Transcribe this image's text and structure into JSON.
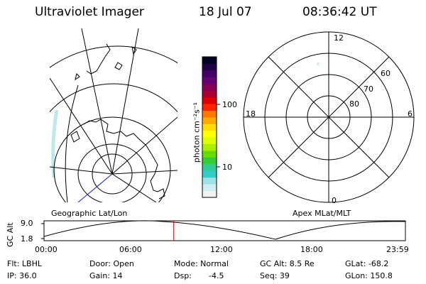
{
  "header": {
    "title": "Ultraviolet Imager",
    "date": "18 Jul 07",
    "time": "08:36:42 UT"
  },
  "colorbar": {
    "unit_label": "photon cm⁻²s⁻¹",
    "ticks": [
      "100",
      "10"
    ],
    "colors": [
      "#f2f2f2",
      "#cfeef2",
      "#9ee3ea",
      "#33cccc",
      "#33cc99",
      "#33cc33",
      "#66dd00",
      "#aaee00",
      "#ddff00",
      "#ffff00",
      "#ffdd00",
      "#ffaa00",
      "#ff7700",
      "#ff2200",
      "#dd0000",
      "#aa0033",
      "#880055",
      "#660077",
      "#440066",
      "#220044",
      "#000022"
    ]
  },
  "left_panel": {
    "label": "Geographic Lat/Lon"
  },
  "right_panel": {
    "label": "Apex MLat/MLT",
    "mlt_labels": {
      "top": "12",
      "left": "18",
      "right": "6",
      "bottom": "0"
    },
    "lat_labels": [
      "60",
      "70",
      "80"
    ]
  },
  "timeline": {
    "y_axis_label": "GC Alt",
    "y_ticks": [
      "9.0",
      "1.8"
    ],
    "x_ticks": [
      "00:00",
      "06:00",
      "12:00",
      "18:00",
      "23:59"
    ],
    "marker_time_fraction": 0.359
  },
  "info": {
    "flt": "Flt: LBHL",
    "ip": "IP: 36.0",
    "door": "Door: Open",
    "gain": "Gain: 14",
    "mode": "Mode: Normal",
    "dsp_label": "Dsp:",
    "dsp_value": "-4.5",
    "gc_alt": "GC Alt: 8.5 Re",
    "seq": "Seq: 39",
    "glat": "GLat: -68.2",
    "glon": "GLon: 150.8"
  },
  "colors": {
    "marker": "#cc0000",
    "aurora": "#bfe8ec"
  }
}
